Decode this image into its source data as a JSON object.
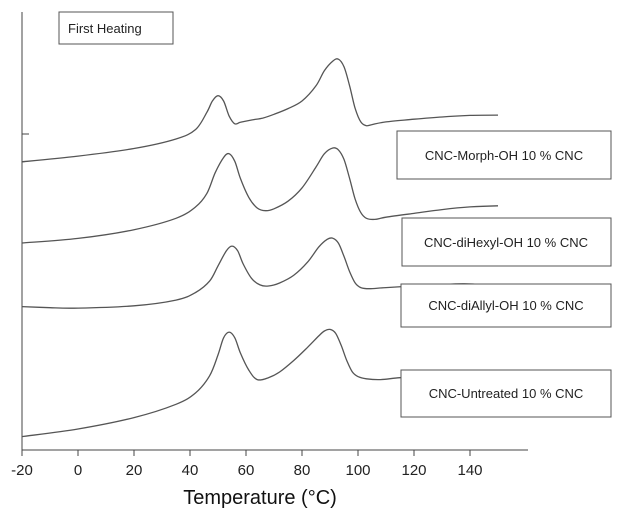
{
  "chart_data": {
    "type": "line",
    "title": "First Heating",
    "xlabel": "Temperature (°C)",
    "ylabel": "",
    "xlim": [
      -20,
      150
    ],
    "xticks": [
      -20,
      0,
      20,
      40,
      60,
      80,
      100,
      120,
      140
    ],
    "grid": false,
    "series": [
      {
        "name": "CNC-Morph-OH 10 % CNC",
        "points": [
          [
            -20,
            -1.1
          ],
          [
            0,
            -0.95
          ],
          [
            20,
            -0.75
          ],
          [
            35,
            -0.5
          ],
          [
            42,
            -0.25
          ],
          [
            46,
            0.2
          ],
          [
            48,
            0.5
          ],
          [
            50,
            0.64
          ],
          [
            52,
            0.5
          ],
          [
            54,
            0.1
          ],
          [
            56,
            -0.1
          ],
          [
            58,
            -0.06
          ],
          [
            62,
            0.0
          ],
          [
            66,
            0.05
          ],
          [
            70,
            0.15
          ],
          [
            75,
            0.3
          ],
          [
            80,
            0.5
          ],
          [
            85,
            0.9
          ],
          [
            88,
            1.3
          ],
          [
            91,
            1.55
          ],
          [
            93,
            1.6
          ],
          [
            95,
            1.4
          ],
          [
            97,
            0.9
          ],
          [
            99,
            0.3
          ],
          [
            101,
            -0.05
          ],
          [
            103,
            -0.15
          ],
          [
            105,
            -0.12
          ],
          [
            110,
            -0.05
          ],
          [
            120,
            0.02
          ],
          [
            130,
            0.08
          ],
          [
            140,
            0.12
          ],
          [
            150,
            0.13
          ]
        ]
      },
      {
        "name": "CNC-diHexyl-OH 10 % CNC",
        "points": [
          [
            -20,
            -1.0
          ],
          [
            0,
            -0.88
          ],
          [
            20,
            -0.65
          ],
          [
            35,
            -0.35
          ],
          [
            42,
            -0.05
          ],
          [
            46,
            0.3
          ],
          [
            49,
            0.85
          ],
          [
            52,
            1.25
          ],
          [
            54,
            1.35
          ],
          [
            56,
            1.15
          ],
          [
            58,
            0.7
          ],
          [
            61,
            0.2
          ],
          [
            64,
            -0.08
          ],
          [
            67,
            -0.15
          ],
          [
            70,
            -0.1
          ],
          [
            75,
            0.1
          ],
          [
            80,
            0.45
          ],
          [
            85,
            1.0
          ],
          [
            88,
            1.35
          ],
          [
            91,
            1.5
          ],
          [
            93,
            1.45
          ],
          [
            95,
            1.2
          ],
          [
            97,
            0.7
          ],
          [
            99,
            0.15
          ],
          [
            101,
            -0.2
          ],
          [
            103,
            -0.35
          ],
          [
            106,
            -0.38
          ],
          [
            110,
            -0.32
          ],
          [
            120,
            -0.22
          ],
          [
            130,
            -0.12
          ],
          [
            140,
            -0.05
          ],
          [
            150,
            -0.02
          ]
        ]
      },
      {
        "name": "CNC-diAllyl-OH 10 % CNC",
        "points": [
          [
            -20,
            -0.62
          ],
          [
            -10,
            -0.65
          ],
          [
            0,
            -0.66
          ],
          [
            20,
            -0.6
          ],
          [
            35,
            -0.45
          ],
          [
            42,
            -0.25
          ],
          [
            47,
            0.05
          ],
          [
            50,
            0.45
          ],
          [
            53,
            0.85
          ],
          [
            55,
            0.97
          ],
          [
            57,
            0.85
          ],
          [
            59,
            0.5
          ],
          [
            62,
            0.12
          ],
          [
            65,
            -0.05
          ],
          [
            68,
            -0.08
          ],
          [
            72,
            0.0
          ],
          [
            77,
            0.2
          ],
          [
            82,
            0.55
          ],
          [
            86,
            0.95
          ],
          [
            89,
            1.15
          ],
          [
            91,
            1.18
          ],
          [
            93,
            1.05
          ],
          [
            95,
            0.7
          ],
          [
            97,
            0.3
          ],
          [
            99,
            0.0
          ],
          [
            101,
            -0.12
          ],
          [
            104,
            -0.15
          ],
          [
            110,
            -0.12
          ],
          [
            120,
            -0.08
          ],
          [
            130,
            -0.04
          ],
          [
            138,
            -0.02
          ],
          [
            145,
            -0.05
          ],
          [
            150,
            -0.1
          ]
        ]
      },
      {
        "name": "CNC-Untreated 10 % CNC",
        "points": [
          [
            -20,
            -1.7
          ],
          [
            0,
            -1.5
          ],
          [
            20,
            -1.2
          ],
          [
            35,
            -0.85
          ],
          [
            42,
            -0.55
          ],
          [
            47,
            -0.1
          ],
          [
            50,
            0.45
          ],
          [
            52,
            0.9
          ],
          [
            54,
            1.05
          ],
          [
            56,
            0.9
          ],
          [
            58,
            0.5
          ],
          [
            61,
            0.05
          ],
          [
            64,
            -0.2
          ],
          [
            68,
            -0.15
          ],
          [
            72,
            0.0
          ],
          [
            77,
            0.3
          ],
          [
            82,
            0.65
          ],
          [
            86,
            0.95
          ],
          [
            88,
            1.08
          ],
          [
            90,
            1.12
          ],
          [
            92,
            1.02
          ],
          [
            94,
            0.7
          ],
          [
            96,
            0.3
          ],
          [
            98,
            0.0
          ],
          [
            100,
            -0.12
          ],
          [
            103,
            -0.18
          ],
          [
            108,
            -0.2
          ],
          [
            115,
            -0.15
          ],
          [
            125,
            -0.1
          ],
          [
            135,
            -0.06
          ],
          [
            140,
            -0.05
          ],
          [
            145,
            -0.07
          ],
          [
            150,
            -0.12
          ]
        ]
      }
    ]
  }
}
